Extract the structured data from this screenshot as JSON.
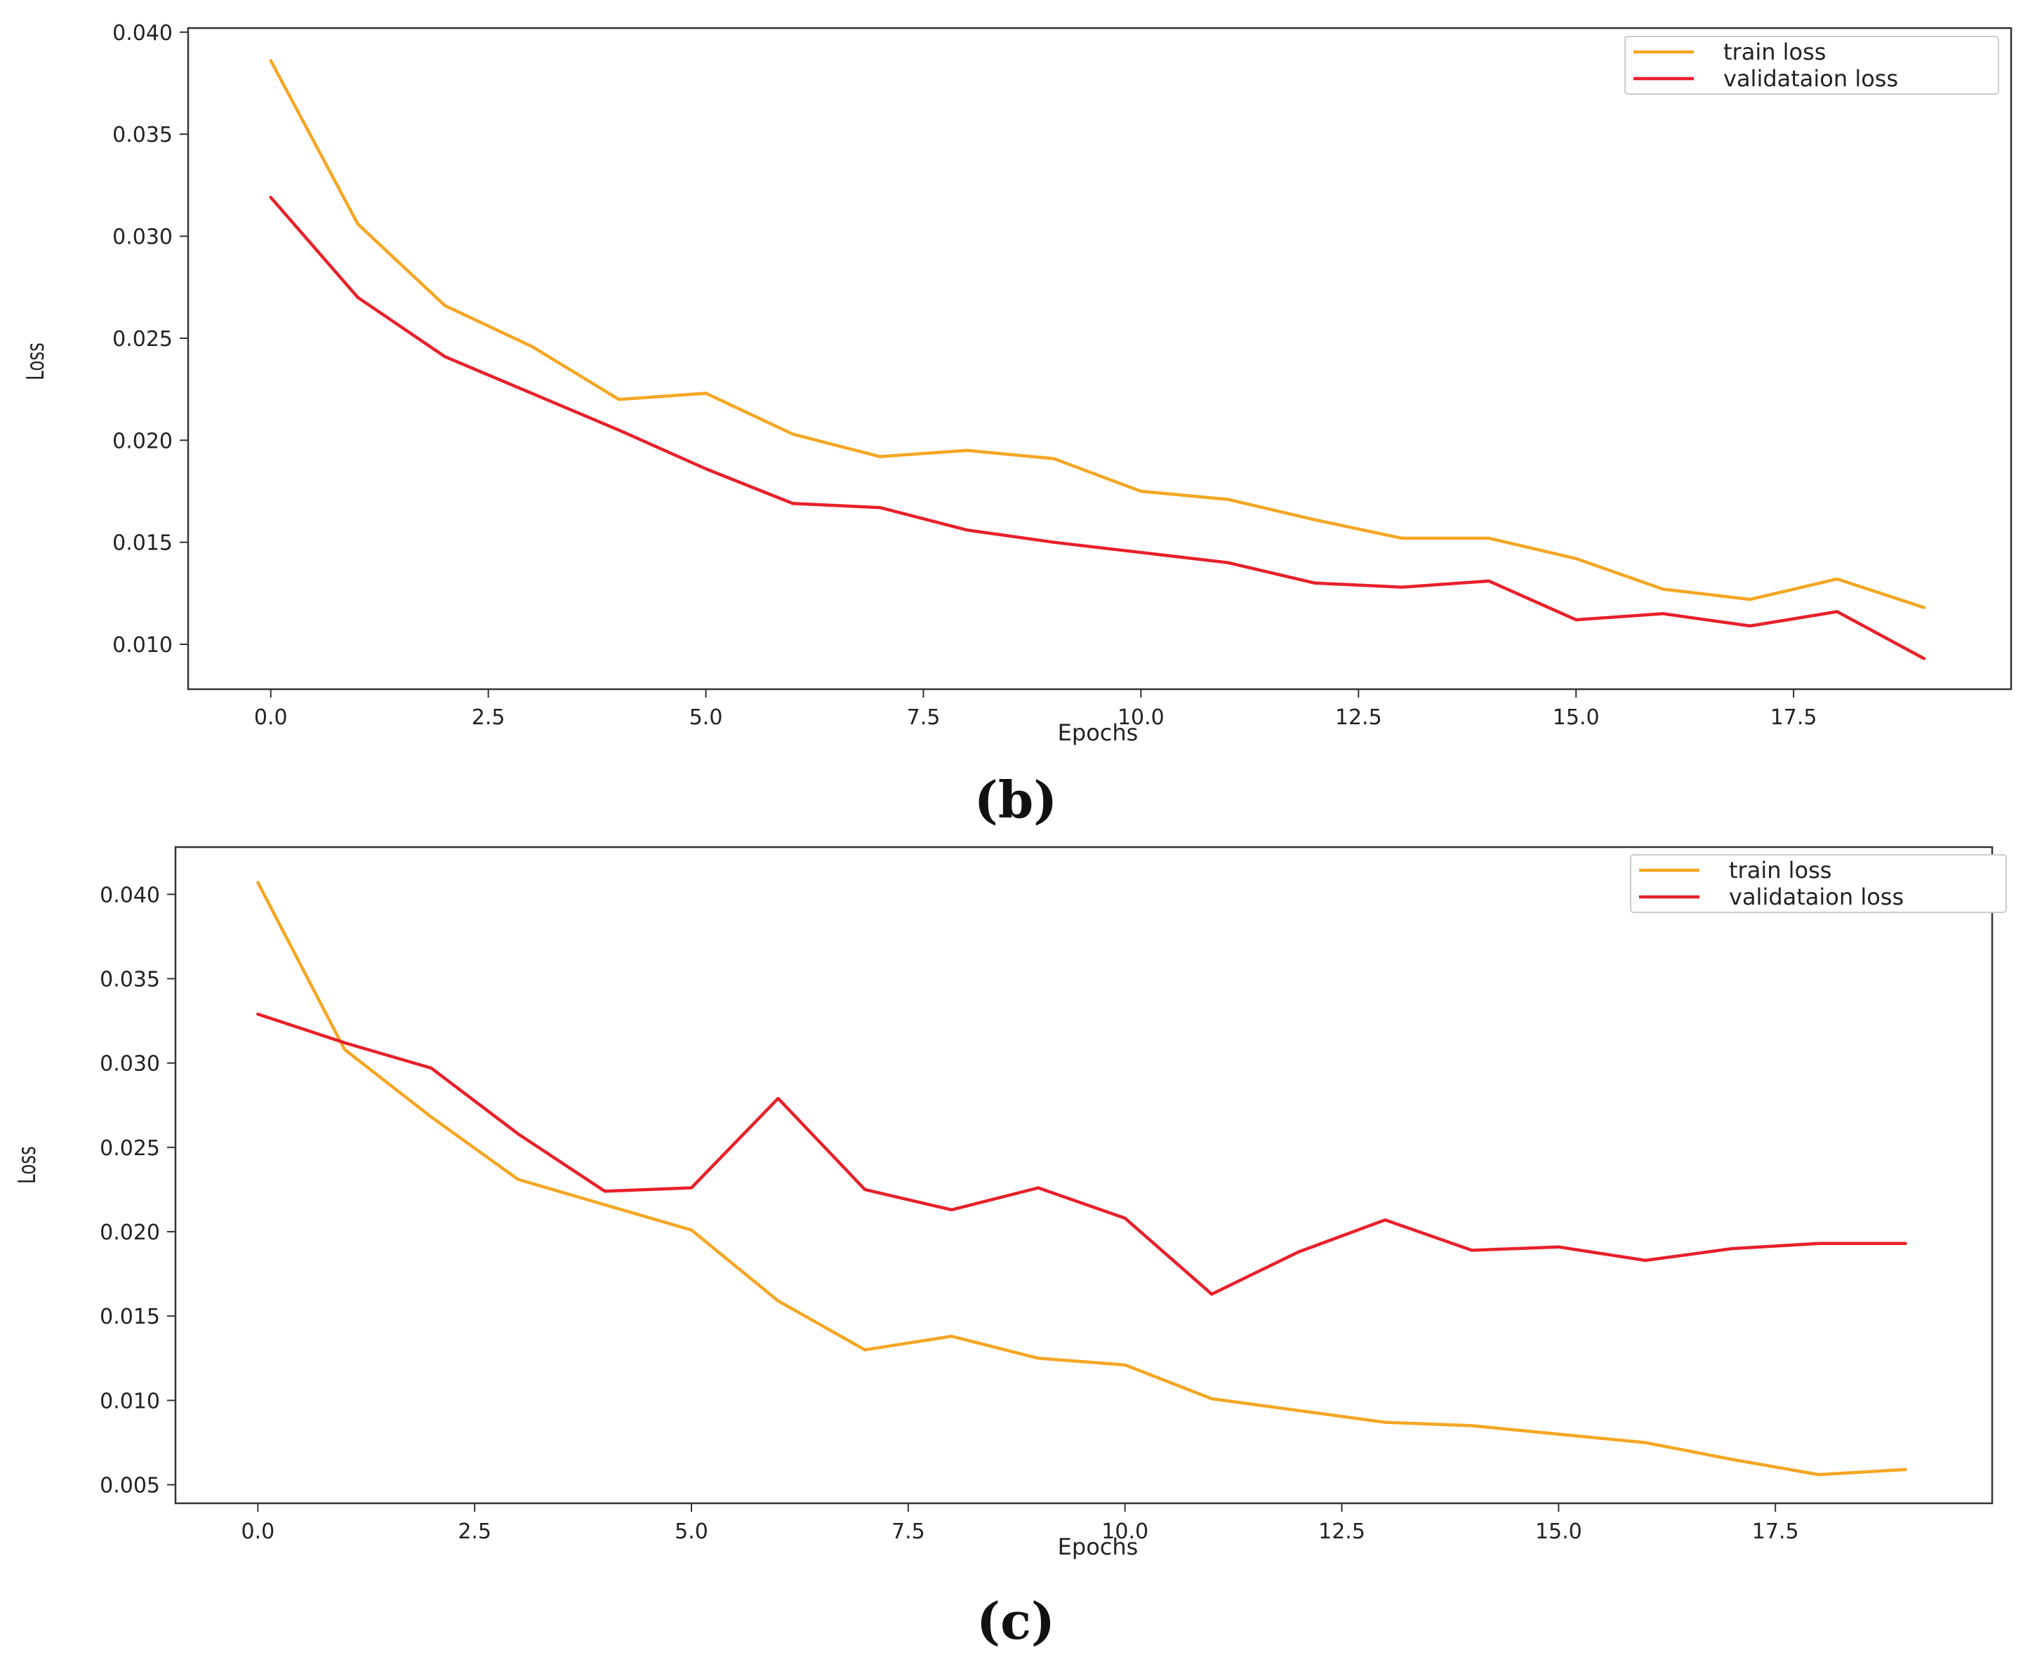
{
  "colors": {
    "train": "#f5a623",
    "validation": "#e8202a",
    "axis": "#333333",
    "legend_border": "#cccccc"
  },
  "chart_data": [
    {
      "type": "line",
      "panel": "b",
      "caption": "(b)",
      "title": "",
      "xlabel": "Epochs",
      "ylabel": "Loss",
      "xlim": [
        -0.95,
        20.0
      ],
      "ylim": [
        0.0078,
        0.0402
      ],
      "xticks": [
        0.0,
        2.5,
        5.0,
        7.5,
        10.0,
        12.5,
        15.0,
        17.5
      ],
      "xtick_labels": [
        "0.0",
        "2.5",
        "5.0",
        "7.5",
        "10.0",
        "12.5",
        "15.0",
        "17.5"
      ],
      "yticks": [
        0.01,
        0.015,
        0.02,
        0.025,
        0.03,
        0.035,
        0.04
      ],
      "ytick_labels": [
        "0.010",
        "0.015",
        "0.020",
        "0.025",
        "0.030",
        "0.035",
        "0.040"
      ],
      "grid": false,
      "legend_position": "top-right",
      "x": [
        0,
        1,
        2,
        3,
        4,
        5,
        6,
        7,
        8,
        9,
        10,
        11,
        12,
        13,
        14,
        15,
        16,
        17,
        18,
        19
      ],
      "series": [
        {
          "name": "train loss",
          "color_key": "train",
          "values": [
            0.0386,
            0.0306,
            0.0266,
            0.0246,
            0.022,
            0.0223,
            0.0203,
            0.0192,
            0.0195,
            0.0191,
            0.0175,
            0.0171,
            0.0161,
            0.0152,
            0.0152,
            0.0142,
            0.0127,
            0.0122,
            0.0132,
            0.0118
          ]
        },
        {
          "name": "validataion loss",
          "color_key": "validation",
          "values": [
            0.0319,
            0.027,
            0.0241,
            0.0223,
            0.0205,
            0.0186,
            0.0169,
            0.0167,
            0.0156,
            0.015,
            0.0145,
            0.014,
            0.013,
            0.0128,
            0.0131,
            0.0112,
            0.0115,
            0.0109,
            0.0116,
            0.0093
          ]
        }
      ]
    },
    {
      "type": "line",
      "panel": "c",
      "caption": "(c)",
      "title": "",
      "xlabel": "Epochs",
      "ylabel": "Loss",
      "xlim": [
        -0.95,
        20.0
      ],
      "ylim": [
        0.0039,
        0.0428
      ],
      "xticks": [
        0.0,
        2.5,
        5.0,
        7.5,
        10.0,
        12.5,
        15.0,
        17.5
      ],
      "xtick_labels": [
        "0.0",
        "2.5",
        "5.0",
        "7.5",
        "10.0",
        "12.5",
        "15.0",
        "17.5"
      ],
      "yticks": [
        0.005,
        0.01,
        0.015,
        0.02,
        0.025,
        0.03,
        0.035,
        0.04
      ],
      "ytick_labels": [
        "0.005",
        "0.010",
        "0.015",
        "0.020",
        "0.025",
        "0.030",
        "0.035",
        "0.040"
      ],
      "grid": false,
      "legend_position": "top-right",
      "x": [
        0,
        1,
        2,
        3,
        4,
        5,
        6,
        7,
        8,
        9,
        10,
        11,
        12,
        13,
        14,
        15,
        16,
        17,
        18,
        19
      ],
      "series": [
        {
          "name": "train loss",
          "color_key": "train",
          "values": [
            0.0407,
            0.0308,
            0.0268,
            0.0231,
            0.0216,
            0.0201,
            0.0159,
            0.013,
            0.0138,
            0.0125,
            0.0121,
            0.0101,
            0.0094,
            0.0087,
            0.0085,
            0.008,
            0.0075,
            0.0065,
            0.0056,
            0.0059
          ]
        },
        {
          "name": "validataion loss",
          "color_key": "validation",
          "values": [
            0.0329,
            0.0312,
            0.0297,
            0.0258,
            0.0224,
            0.0226,
            0.0279,
            0.0225,
            0.0213,
            0.0226,
            0.0208,
            0.0163,
            0.0188,
            0.0207,
            0.0189,
            0.0191,
            0.0183,
            0.019,
            0.0193,
            0.0193
          ]
        }
      ]
    }
  ]
}
